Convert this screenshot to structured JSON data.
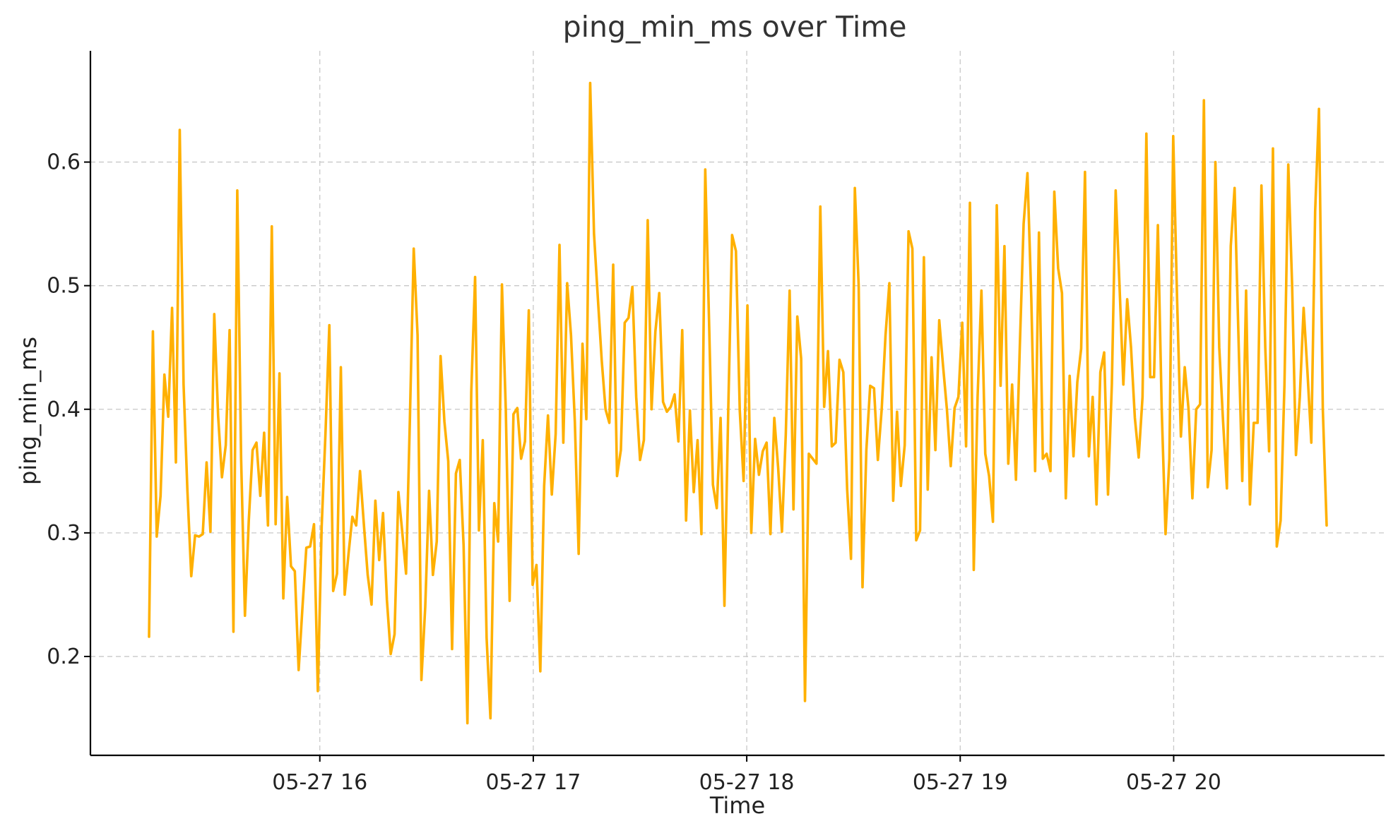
{
  "chart_data": {
    "type": "line",
    "title": "ping_min_ms over Time",
    "xlabel": "Time",
    "ylabel": "ping_min_ms",
    "x_start": "05-27 15:12",
    "x_end": "05-27 20:43",
    "x_ticks": [
      "05-27 16",
      "05-27 17",
      "05-27 18",
      "05-27 19",
      "05-27 20"
    ],
    "y_ticks": [
      "0.2",
      "0.3",
      "0.4",
      "0.5",
      "0.6"
    ],
    "ylim": [
      0.12,
      0.69
    ],
    "grid": true,
    "series": [
      {
        "color": "#ffb000",
        "values": [
          0.216,
          0.463,
          0.297,
          0.33,
          0.428,
          0.394,
          0.482,
          0.357,
          0.626,
          0.42,
          0.334,
          0.265,
          0.298,
          0.297,
          0.299,
          0.357,
          0.301,
          0.477,
          0.395,
          0.345,
          0.371,
          0.464,
          0.22,
          0.577,
          0.36,
          0.233,
          0.31,
          0.367,
          0.373,
          0.33,
          0.381,
          0.306,
          0.548,
          0.307,
          0.429,
          0.247,
          0.329,
          0.273,
          0.269,
          0.189,
          0.24,
          0.288,
          0.289,
          0.307,
          0.172,
          0.305,
          0.381,
          0.468,
          0.253,
          0.267,
          0.434,
          0.25,
          0.283,
          0.313,
          0.306,
          0.35,
          0.307,
          0.266,
          0.242,
          0.326,
          0.278,
          0.316,
          0.246,
          0.202,
          0.218,
          0.333,
          0.301,
          0.267,
          0.392,
          0.53,
          0.46,
          0.181,
          0.24,
          0.334,
          0.266,
          0.293,
          0.443,
          0.39,
          0.358,
          0.206,
          0.348,
          0.359,
          0.29,
          0.146,
          0.414,
          0.507,
          0.302,
          0.375,
          0.215,
          0.15,
          0.324,
          0.293,
          0.501,
          0.4,
          0.245,
          0.396,
          0.401,
          0.36,
          0.374,
          0.48,
          0.258,
          0.274,
          0.188,
          0.338,
          0.395,
          0.331,
          0.38,
          0.533,
          0.373,
          0.502,
          0.46,
          0.39,
          0.283,
          0.453,
          0.392,
          0.664,
          0.542,
          0.49,
          0.44,
          0.4,
          0.389,
          0.517,
          0.346,
          0.367,
          0.47,
          0.474,
          0.499,
          0.41,
          0.359,
          0.375,
          0.553,
          0.4,
          0.463,
          0.494,
          0.406,
          0.398,
          0.402,
          0.412,
          0.374,
          0.464,
          0.31,
          0.399,
          0.333,
          0.375,
          0.299,
          0.594,
          0.47,
          0.339,
          0.32,
          0.393,
          0.241,
          0.4,
          0.541,
          0.528,
          0.399,
          0.342,
          0.484,
          0.3,
          0.376,
          0.347,
          0.366,
          0.373,
          0.299,
          0.393,
          0.353,
          0.301,
          0.38,
          0.496,
          0.319,
          0.475,
          0.441,
          0.164,
          0.364,
          0.36,
          0.356,
          0.564,
          0.402,
          0.447,
          0.37,
          0.373,
          0.44,
          0.43,
          0.335,
          0.279,
          0.579,
          0.5,
          0.256,
          0.367,
          0.419,
          0.417,
          0.359,
          0.4,
          0.46,
          0.502,
          0.326,
          0.398,
          0.338,
          0.371,
          0.544,
          0.53,
          0.294,
          0.302,
          0.523,
          0.335,
          0.442,
          0.367,
          0.472,
          0.435,
          0.4,
          0.354,
          0.401,
          0.41,
          0.47,
          0.37,
          0.567,
          0.27,
          0.41,
          0.496,
          0.364,
          0.346,
          0.309,
          0.565,
          0.419,
          0.532,
          0.356,
          0.42,
          0.343,
          0.45,
          0.55,
          0.591,
          0.49,
          0.35,
          0.543,
          0.36,
          0.364,
          0.35,
          0.576,
          0.514,
          0.494,
          0.328,
          0.427,
          0.362,
          0.422,
          0.449,
          0.592,
          0.362,
          0.41,
          0.323,
          0.43,
          0.446,
          0.331,
          0.42,
          0.577,
          0.5,
          0.42,
          0.489,
          0.45,
          0.393,
          0.361,
          0.41,
          0.623,
          0.426,
          0.426,
          0.549,
          0.4,
          0.299,
          0.36,
          0.621,
          0.49,
          0.378,
          0.434,
          0.4,
          0.328,
          0.4,
          0.404,
          0.65,
          0.337,
          0.367,
          0.6,
          0.45,
          0.39,
          0.336,
          0.532,
          0.579,
          0.46,
          0.342,
          0.496,
          0.323,
          0.389,
          0.389,
          0.581,
          0.45,
          0.366,
          0.611,
          0.289,
          0.31,
          0.42,
          0.598,
          0.5,
          0.363,
          0.41,
          0.482,
          0.43,
          0.373,
          0.56,
          0.643,
          0.4,
          0.306
        ]
      }
    ]
  }
}
